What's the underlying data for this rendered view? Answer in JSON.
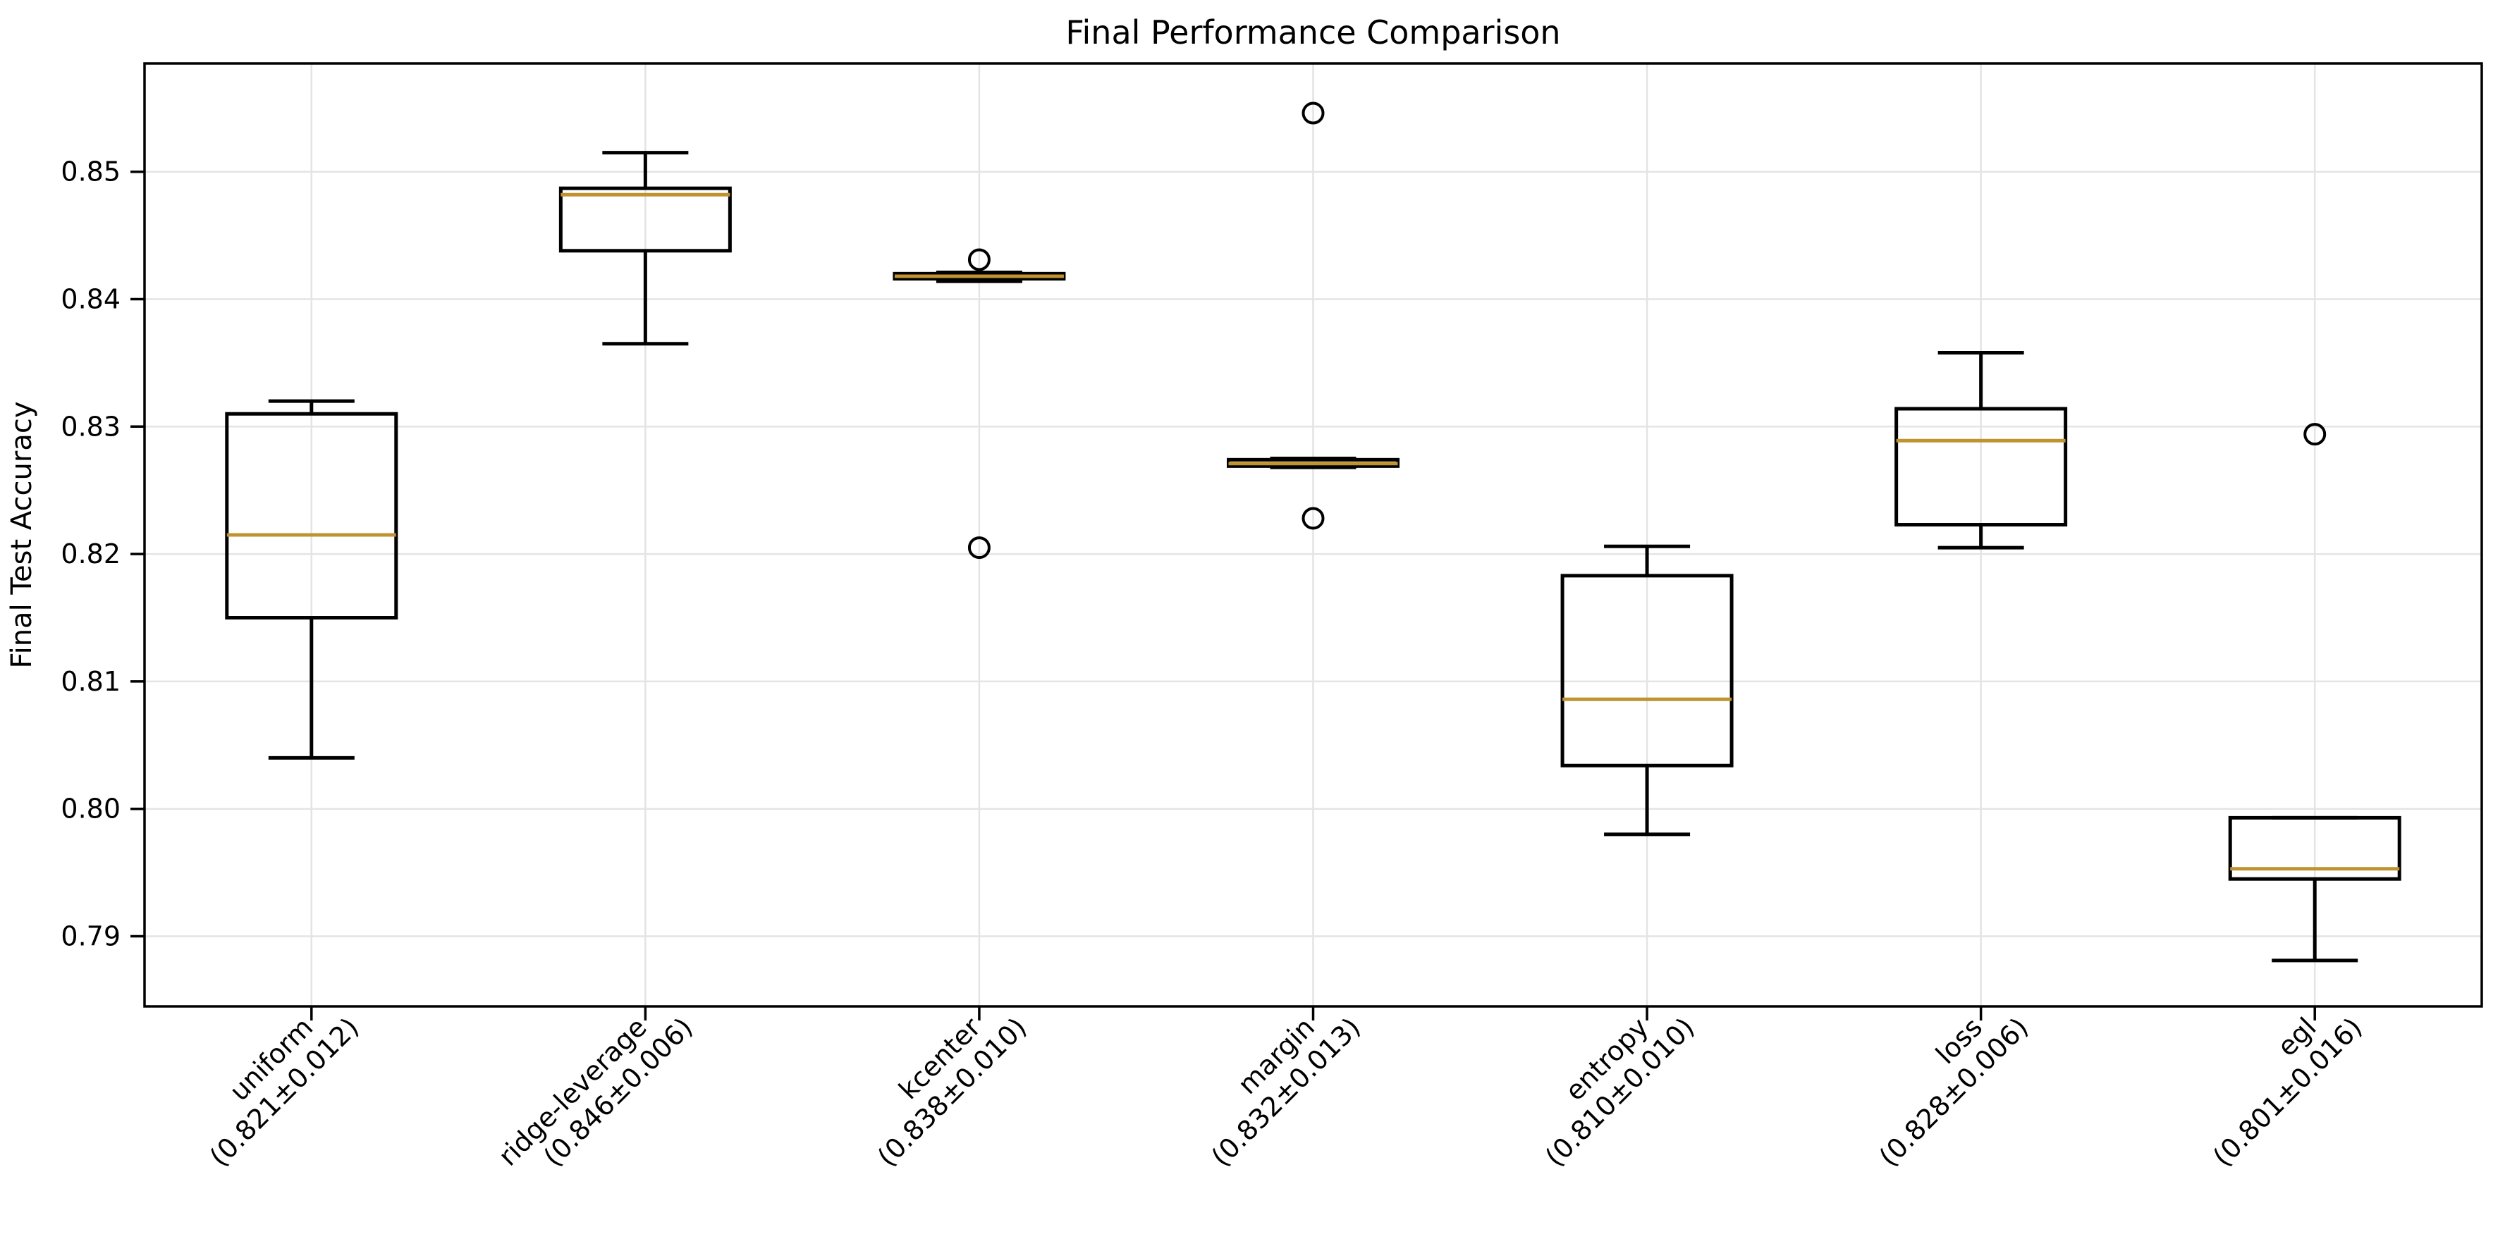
{
  "figure": {
    "background": "#ffffff",
    "text_color": "#000000"
  },
  "chart_data": {
    "type": "boxplot",
    "title": "Final Performance Comparison",
    "ylabel": "Final Test Accuracy",
    "xlabel": "",
    "ylim": [
      0.7845,
      0.8585
    ],
    "yticks": [
      0.79,
      0.8,
      0.81,
      0.82,
      0.83,
      0.84,
      0.85
    ],
    "ytick_labels": [
      "0.79",
      "0.80",
      "0.81",
      "0.82",
      "0.83",
      "0.84",
      "0.85"
    ],
    "grid": true,
    "legend": "none",
    "gridline_color": "#e4e4e4",
    "box_color": "#000000",
    "median_color": "#bf9430",
    "categories": [
      {
        "label": "uniform",
        "stats_label": "(0.821±0.012)",
        "whislo": 0.804,
        "q1": 0.815,
        "med": 0.8215,
        "q3": 0.831,
        "whishi": 0.832,
        "fliers": []
      },
      {
        "label": "ridge-leverage",
        "stats_label": "(0.846±0.006)",
        "whislo": 0.8365,
        "q1": 0.8438,
        "med": 0.8482,
        "q3": 0.8487,
        "whishi": 0.8515,
        "fliers": []
      },
      {
        "label": "kcenter",
        "stats_label": "(0.838±0.010)",
        "whislo": 0.8414,
        "q1": 0.8416,
        "med": 0.8418,
        "q3": 0.842,
        "whishi": 0.8421,
        "fliers": [
          0.8431,
          0.8205
        ]
      },
      {
        "label": "margin",
        "stats_label": "(0.832±0.013)",
        "whislo": 0.8268,
        "q1": 0.8269,
        "med": 0.8271,
        "q3": 0.8274,
        "whishi": 0.8275,
        "fliers": [
          0.8546,
          0.8228
        ]
      },
      {
        "label": "entropy",
        "stats_label": "(0.810±0.010)",
        "whislo": 0.798,
        "q1": 0.8034,
        "med": 0.8086,
        "q3": 0.8183,
        "whishi": 0.8206,
        "fliers": []
      },
      {
        "label": "loss",
        "stats_label": "(0.828±0.006)",
        "whislo": 0.8205,
        "q1": 0.8223,
        "med": 0.8289,
        "q3": 0.8314,
        "whishi": 0.8358,
        "fliers": []
      },
      {
        "label": "egl",
        "stats_label": "(0.801±0.016)",
        "whislo": 0.7881,
        "q1": 0.7945,
        "med": 0.7953,
        "q3": 0.7993,
        "whishi": 0.7993,
        "fliers": [
          0.8294
        ]
      }
    ]
  }
}
